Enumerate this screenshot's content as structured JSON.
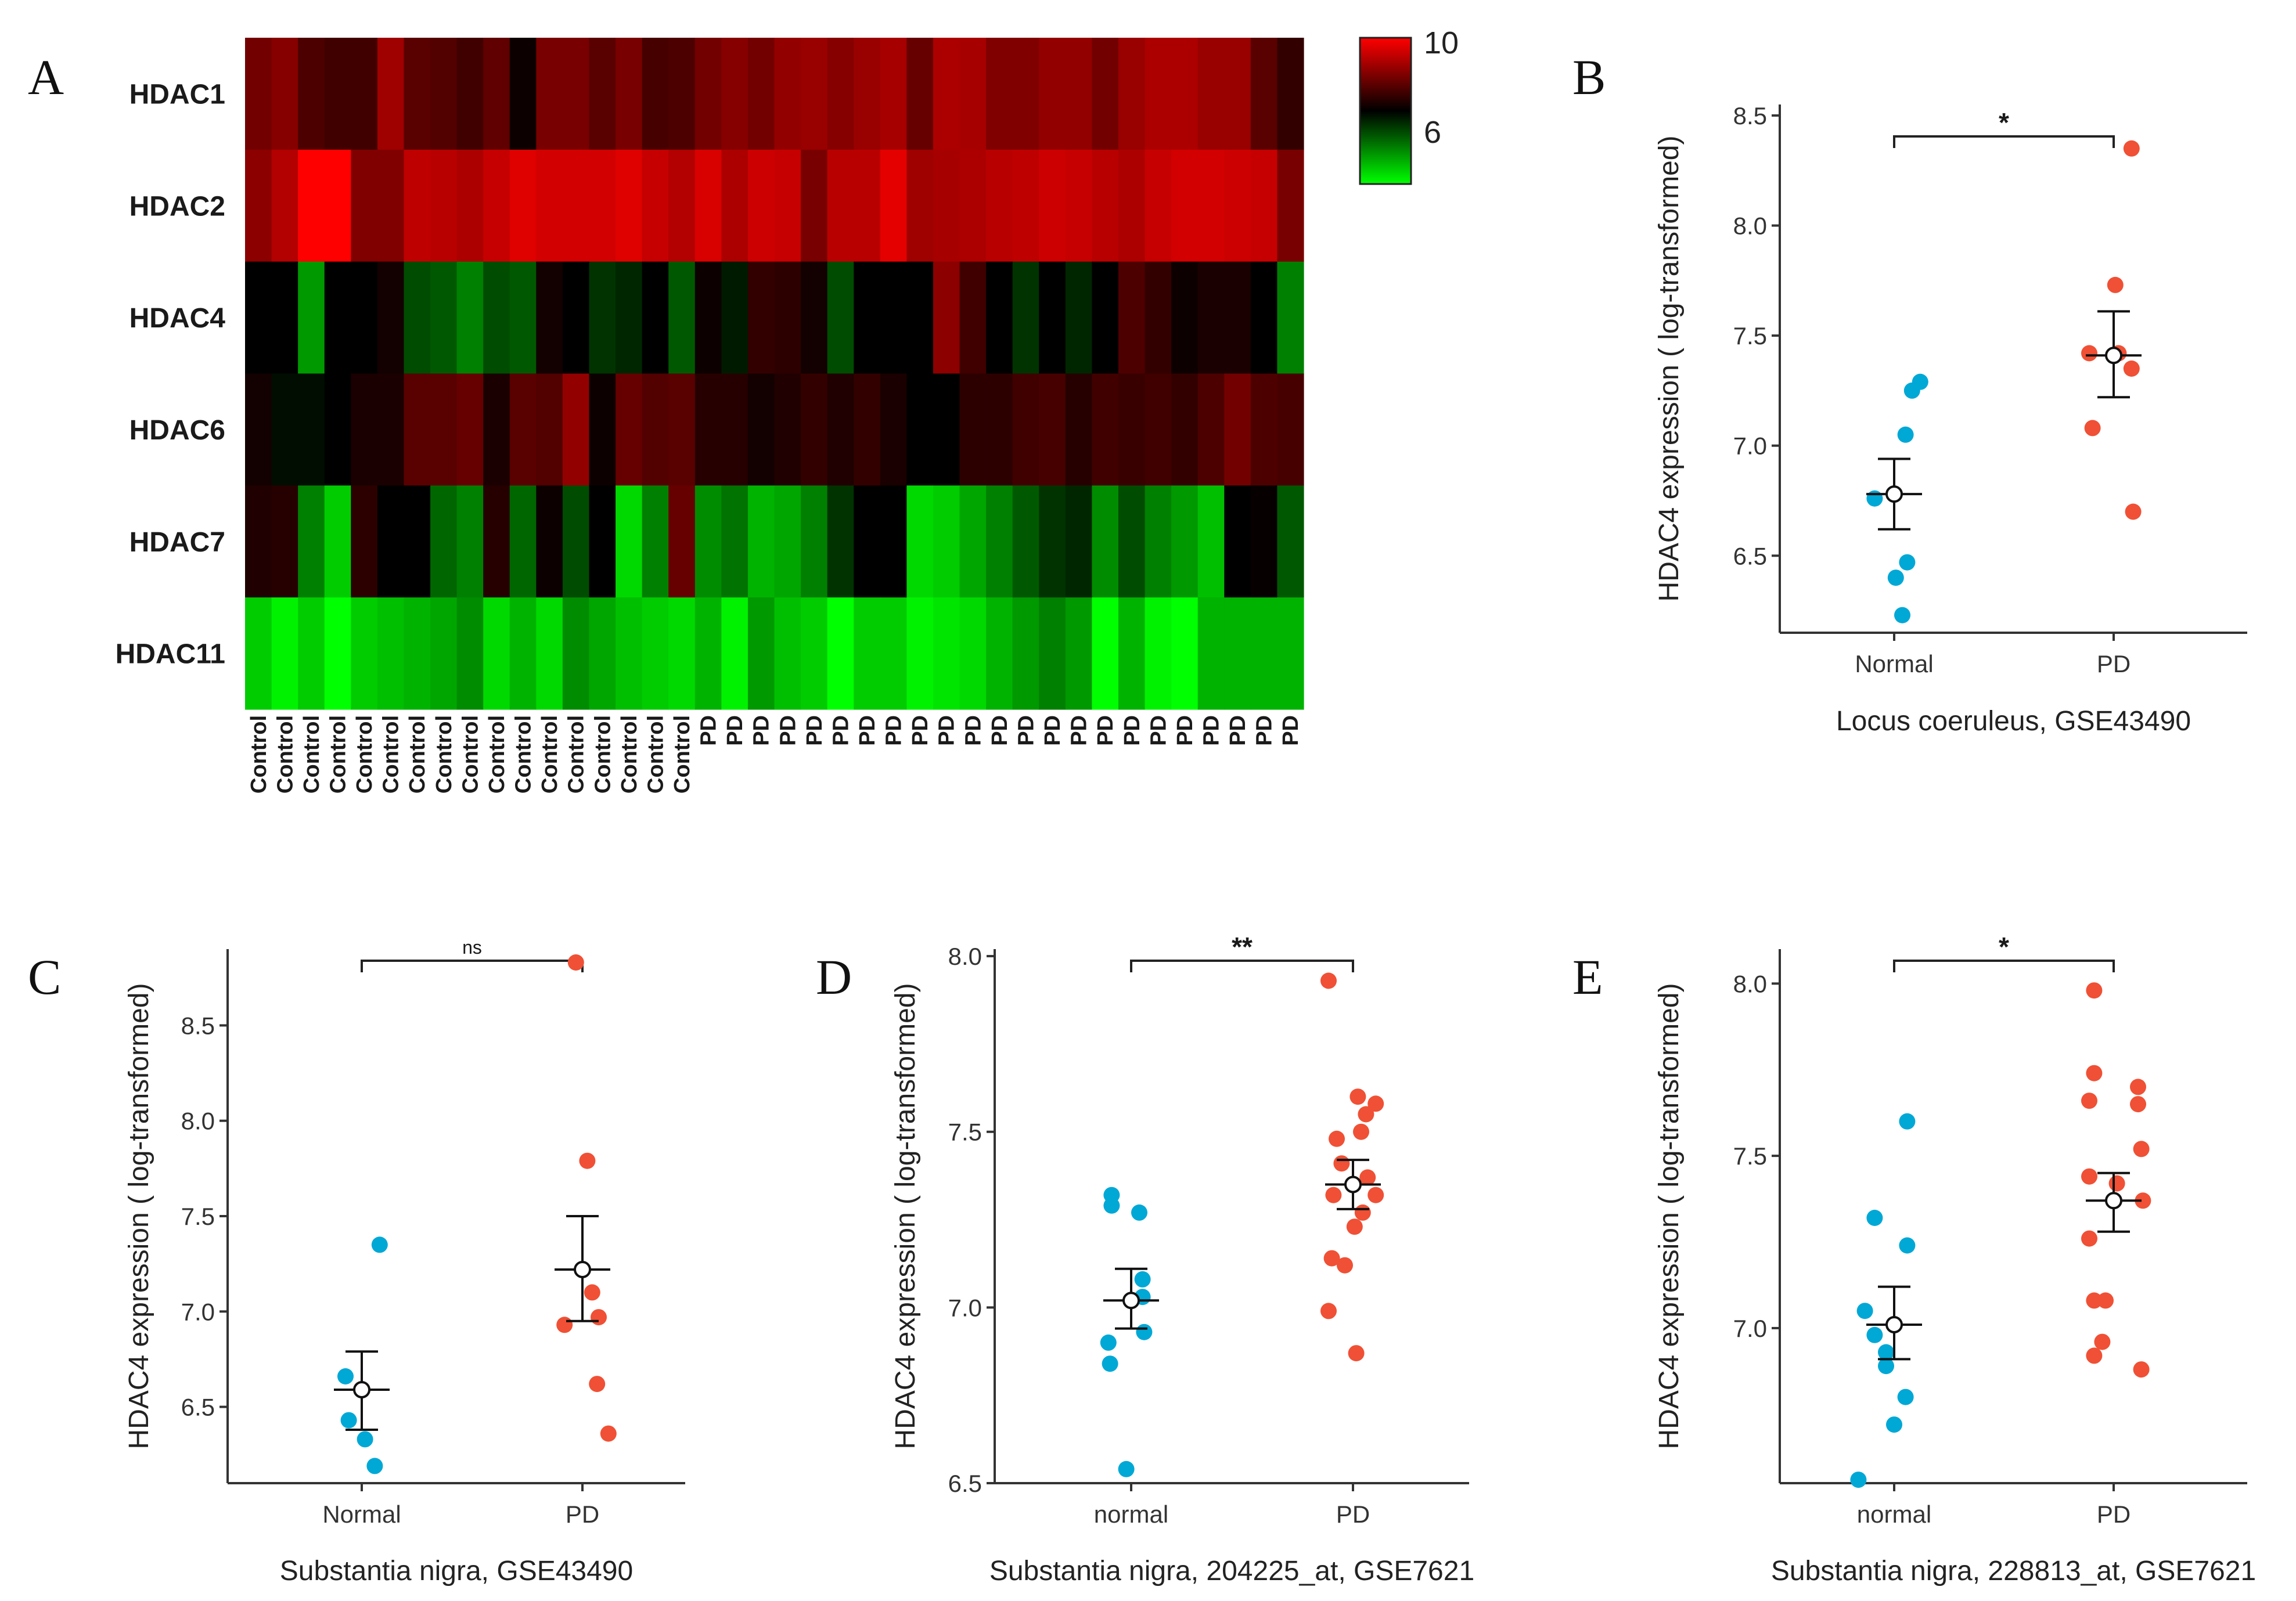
{
  "figure": {
    "heatmap": {
      "letter": "A",
      "genes": [
        "HDAC1",
        "HDAC2",
        "HDAC4",
        "HDAC6",
        "HDAC7",
        "HDAC11"
      ],
      "columns": [
        "Control",
        "Control",
        "Control",
        "Control",
        "Control",
        "Control",
        "Control",
        "Control",
        "Control",
        "Control",
        "Control",
        "Control",
        "Control",
        "Control",
        "Control",
        "Control",
        "Control",
        "PD",
        "PD",
        "PD",
        "PD",
        "PD",
        "PD",
        "PD",
        "PD",
        "PD",
        "PD",
        "PD",
        "PD",
        "PD",
        "PD",
        "PD",
        "PD",
        "PD",
        "PD",
        "PD",
        "PD",
        "PD",
        "PD",
        "PD"
      ],
      "legend": {
        "high_label": "10",
        "mid_label": "6",
        "color_high": "#ff0000",
        "color_mid": "#000000",
        "color_low": "#00ff00"
      }
    }
  },
  "chart_data": [
    {
      "panel": "A",
      "type": "heatmap",
      "rows": [
        "HDAC1",
        "HDAC2",
        "HDAC4",
        "HDAC6",
        "HDAC7",
        "HDAC11"
      ],
      "col_groups": [
        {
          "name": "Control",
          "count": 17
        },
        {
          "name": "PD",
          "count": 23
        }
      ],
      "scale": {
        "min": 4,
        "mid": 6,
        "max": 10,
        "ticks": [
          6,
          10
        ]
      },
      "values": [
        [
          7.8,
          8.1,
          7.2,
          7.0,
          7.0,
          8.5,
          7.4,
          7.3,
          7.0,
          7.5,
          6.2,
          7.9,
          7.9,
          7.4,
          7.9,
          7.1,
          7.2,
          7.8,
          8.1,
          7.8,
          8.3,
          8.4,
          8.1,
          8.4,
          8.6,
          7.6,
          8.7,
          8.6,
          8.0,
          8.0,
          8.3,
          8.3,
          7.8,
          8.4,
          8.7,
          8.7,
          8.4,
          8.4,
          7.4,
          6.8
        ],
        [
          8.2,
          8.8,
          10.0,
          10.0,
          8.0,
          8.0,
          9.0,
          8.9,
          8.7,
          9.1,
          9.5,
          9.3,
          9.3,
          9.3,
          9.5,
          9.1,
          8.8,
          9.4,
          8.7,
          9.2,
          9.1,
          7.9,
          8.9,
          8.9,
          9.6,
          8.5,
          8.6,
          8.7,
          8.9,
          9.0,
          9.2,
          9.1,
          8.9,
          8.7,
          9.1,
          9.3,
          9.3,
          9.2,
          9.1,
          7.9
        ],
        [
          6.0,
          6.0,
          4.8,
          6.0,
          6.0,
          6.3,
          5.4,
          5.3,
          5.0,
          5.4,
          5.3,
          6.3,
          6.0,
          5.6,
          5.7,
          6.0,
          5.3,
          6.2,
          5.8,
          6.8,
          6.7,
          6.3,
          5.4,
          6.0,
          6.0,
          6.0,
          8.2,
          7.0,
          6.0,
          5.6,
          6.0,
          5.7,
          6.0,
          7.2,
          6.8,
          6.2,
          6.4,
          6.4,
          6.0,
          5.0
        ],
        [
          6.3,
          5.9,
          5.9,
          6.0,
          6.4,
          6.4,
          7.4,
          7.4,
          7.6,
          6.4,
          7.4,
          7.3,
          8.3,
          6.2,
          7.6,
          7.3,
          7.4,
          6.6,
          6.6,
          6.3,
          6.5,
          6.8,
          6.5,
          6.8,
          6.4,
          6.0,
          6.0,
          6.7,
          6.7,
          7.0,
          7.1,
          6.6,
          7.0,
          6.9,
          7.0,
          6.8,
          7.2,
          7.8,
          7.2,
          7.1
        ],
        [
          6.5,
          6.6,
          5.0,
          4.4,
          6.7,
          6.0,
          6.0,
          5.2,
          5.0,
          6.6,
          5.2,
          6.2,
          5.4,
          6.0,
          4.3,
          5.0,
          7.6,
          4.9,
          5.1,
          4.6,
          4.7,
          5.0,
          5.6,
          6.0,
          6.0,
          4.3,
          4.4,
          4.7,
          5.0,
          5.3,
          5.6,
          5.7,
          4.9,
          5.4,
          5.0,
          4.8,
          4.5,
          6.0,
          6.1,
          5.3
        ],
        [
          4.4,
          4.1,
          4.4,
          3.5,
          4.4,
          4.5,
          4.6,
          4.7,
          4.9,
          4.3,
          4.6,
          4.3,
          4.9,
          4.7,
          4.5,
          4.4,
          4.3,
          4.6,
          4.1,
          4.8,
          4.5,
          4.4,
          3.9,
          4.4,
          4.4,
          4.1,
          4.2,
          4.3,
          4.6,
          4.8,
          5.0,
          4.8,
          3.7,
          4.6,
          4.1,
          3.4,
          4.6,
          4.6,
          4.6,
          4.6
        ]
      ]
    },
    {
      "panel": "B",
      "type": "scatter",
      "categories": [
        "Normal",
        "PD"
      ],
      "xlabel": "Locus coeruleus, GSE43490",
      "ylabel": "HDAC4 expression ( log-transformed)",
      "ylim": [
        6.15,
        8.55
      ],
      "yticks": [
        6.5,
        7.0,
        7.5,
        8.0,
        8.5
      ],
      "significance": "*",
      "series": [
        {
          "name": "Normal",
          "color": "#00a8d6",
          "points": [
            [
              -0.12,
              6.76
            ],
            [
              0.07,
              7.05
            ],
            [
              0.11,
              7.25
            ],
            [
              0.16,
              7.29
            ],
            [
              0.01,
              6.4
            ],
            [
              0.08,
              6.47
            ],
            [
              0.05,
              6.23
            ]
          ],
          "mean": 6.78,
          "err_low": 6.62,
          "err_high": 6.94
        },
        {
          "name": "PD",
          "color": "#f05035",
          "points": [
            [
              0.11,
              8.35
            ],
            [
              0.01,
              7.73
            ],
            [
              -0.15,
              7.42
            ],
            [
              0.03,
              7.42
            ],
            [
              0.11,
              7.35
            ],
            [
              -0.13,
              7.08
            ],
            [
              0.12,
              6.7
            ]
          ],
          "mean": 7.41,
          "err_low": 7.22,
          "err_high": 7.61
        }
      ]
    },
    {
      "panel": "C",
      "type": "scatter",
      "categories": [
        "Normal",
        "PD"
      ],
      "xlabel": "Substantia nigra, GSE43490",
      "ylabel": "HDAC4 expression ( log-transformed)",
      "ylim": [
        6.1,
        8.9
      ],
      "yticks": [
        6.5,
        7.0,
        7.5,
        8.0,
        8.5
      ],
      "significance": "ns",
      "series": [
        {
          "name": "Normal",
          "color": "#00a8d6",
          "points": [
            [
              0.11,
              7.35
            ],
            [
              -0.1,
              6.66
            ],
            [
              -0.08,
              6.43
            ],
            [
              0.02,
              6.33
            ],
            [
              0.08,
              6.19
            ]
          ],
          "mean": 6.59,
          "err_low": 6.38,
          "err_high": 6.79
        },
        {
          "name": "PD",
          "color": "#f05035",
          "points": [
            [
              -0.04,
              8.83
            ],
            [
              0.03,
              7.79
            ],
            [
              0.06,
              7.1
            ],
            [
              0.1,
              6.97
            ],
            [
              -0.11,
              6.93
            ],
            [
              0.09,
              6.62
            ],
            [
              0.16,
              6.36
            ]
          ],
          "mean": 7.22,
          "err_low": 6.95,
          "err_high": 7.5
        }
      ]
    },
    {
      "panel": "D",
      "type": "scatter",
      "categories": [
        "normal",
        "PD"
      ],
      "xlabel": "Substantia nigra, 204225_at, GSE7621",
      "ylabel": "HDAC4 expression ( log-transformed)",
      "ylim": [
        6.5,
        8.02
      ],
      "yticks": [
        6.5,
        7.0,
        7.5,
        8.0
      ],
      "significance": "**",
      "series": [
        {
          "name": "normal",
          "color": "#00a8d6",
          "points": [
            [
              -0.12,
              7.32
            ],
            [
              -0.12,
              7.29
            ],
            [
              0.05,
              7.27
            ],
            [
              0.07,
              7.08
            ],
            [
              0.07,
              7.03
            ],
            [
              0.08,
              6.93
            ],
            [
              -0.14,
              6.9
            ],
            [
              -0.13,
              6.84
            ],
            [
              -0.03,
              6.54
            ]
          ],
          "mean": 7.02,
          "err_low": 6.94,
          "err_high": 7.11
        },
        {
          "name": "PD",
          "color": "#f05035",
          "points": [
            [
              -0.15,
              7.93
            ],
            [
              0.03,
              7.6
            ],
            [
              0.08,
              7.55
            ],
            [
              0.14,
              7.58
            ],
            [
              0.05,
              7.5
            ],
            [
              -0.1,
              7.48
            ],
            [
              -0.07,
              7.41
            ],
            [
              0.09,
              7.37
            ],
            [
              -0.12,
              7.32
            ],
            [
              0.14,
              7.32
            ],
            [
              0.06,
              7.27
            ],
            [
              0.01,
              7.23
            ],
            [
              -0.13,
              7.14
            ],
            [
              -0.05,
              7.12
            ],
            [
              -0.15,
              6.99
            ],
            [
              0.02,
              6.87
            ]
          ],
          "mean": 7.35,
          "err_low": 7.28,
          "err_high": 7.42
        }
      ]
    },
    {
      "panel": "E",
      "type": "scatter",
      "categories": [
        "normal",
        "PD"
      ],
      "xlabel": "Substantia nigra, 228813_at, GSE7621",
      "ylabel": "HDAC4 expression ( log-transformed)",
      "ylim": [
        6.55,
        8.1
      ],
      "yticks": [
        7.0,
        7.5,
        8.0
      ],
      "significance": "*",
      "series": [
        {
          "name": "normal",
          "color": "#00a8d6",
          "points": [
            [
              0.08,
              7.6
            ],
            [
              -0.12,
              7.32
            ],
            [
              0.08,
              7.24
            ],
            [
              -0.18,
              7.05
            ],
            [
              -0.12,
              6.98
            ],
            [
              -0.05,
              6.93
            ],
            [
              -0.05,
              6.89
            ],
            [
              0.07,
              6.8
            ],
            [
              0.0,
              6.72
            ],
            [
              -0.22,
              6.56
            ]
          ],
          "mean": 7.01,
          "err_low": 6.91,
          "err_high": 7.12
        },
        {
          "name": "PD",
          "color": "#f05035",
          "points": [
            [
              -0.12,
              7.98
            ],
            [
              -0.12,
              7.74
            ],
            [
              0.15,
              7.7
            ],
            [
              -0.15,
              7.66
            ],
            [
              0.15,
              7.65
            ],
            [
              0.17,
              7.52
            ],
            [
              -0.15,
              7.44
            ],
            [
              0.02,
              7.42
            ],
            [
              0.18,
              7.37
            ],
            [
              -0.15,
              7.26
            ],
            [
              -0.12,
              7.08
            ],
            [
              -0.05,
              7.08
            ],
            [
              -0.07,
              6.96
            ],
            [
              -0.12,
              6.92
            ],
            [
              0.17,
              6.88
            ]
          ],
          "mean": 7.37,
          "err_low": 7.28,
          "err_high": 7.45
        }
      ]
    }
  ]
}
